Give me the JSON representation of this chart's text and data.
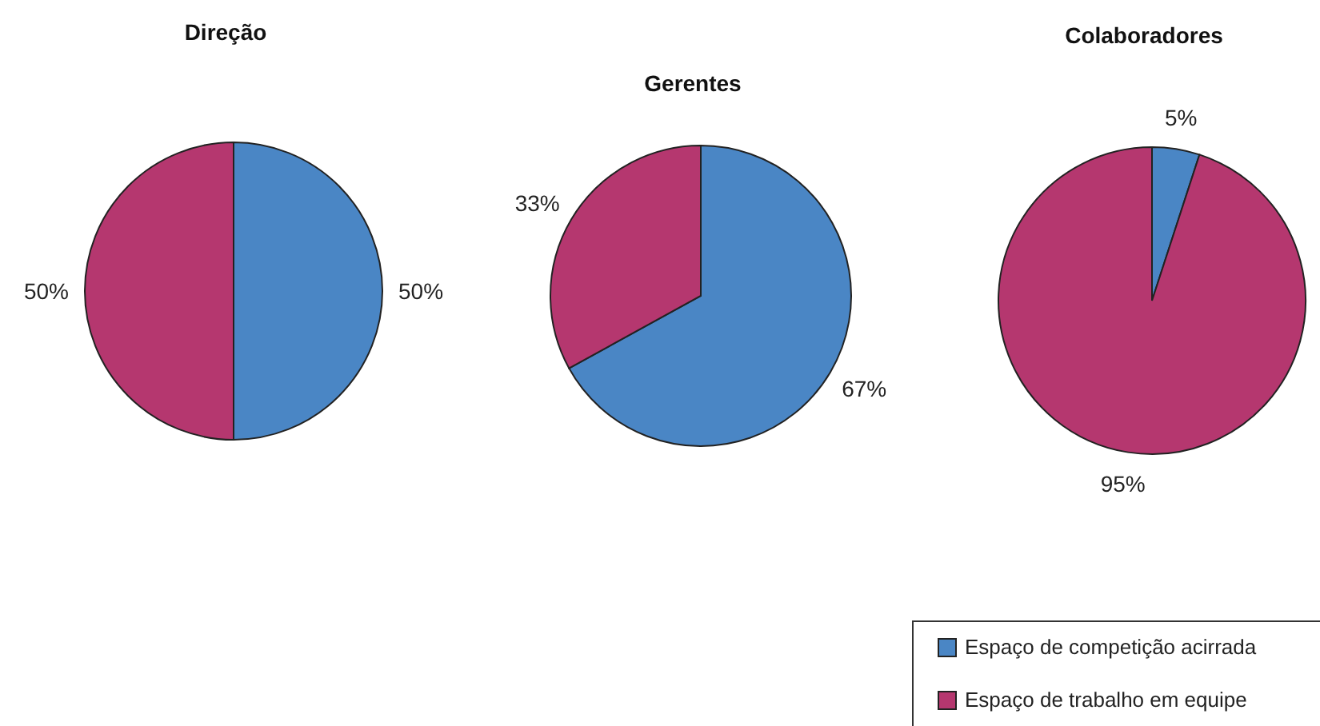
{
  "chart_data": [
    {
      "type": "pie",
      "title": "Direção",
      "categories": [
        "Espaço de competição acirrada",
        "Espaço de trabalho em equipe"
      ],
      "values": [
        50,
        50
      ],
      "colors": [
        "#4a86c5",
        "#b5376f"
      ],
      "value_labels": [
        "50%",
        "50%"
      ],
      "legend": "bottom right"
    },
    {
      "type": "pie",
      "title": "Gerentes",
      "categories": [
        null,
        null
      ],
      "values": [
        67,
        33
      ],
      "colors": [
        "#4a86c5",
        "#b5376f"
      ],
      "value_labels": [
        "67%",
        "33%"
      ]
    },
    {
      "type": "pie",
      "title": "Colaboradores",
      "categories": [
        null,
        null
      ],
      "values": [
        5,
        95
      ],
      "colors": [
        "#4a86c5",
        "#b5376f"
      ],
      "value_labels": [
        "5%",
        "95%"
      ]
    }
  ]
}
